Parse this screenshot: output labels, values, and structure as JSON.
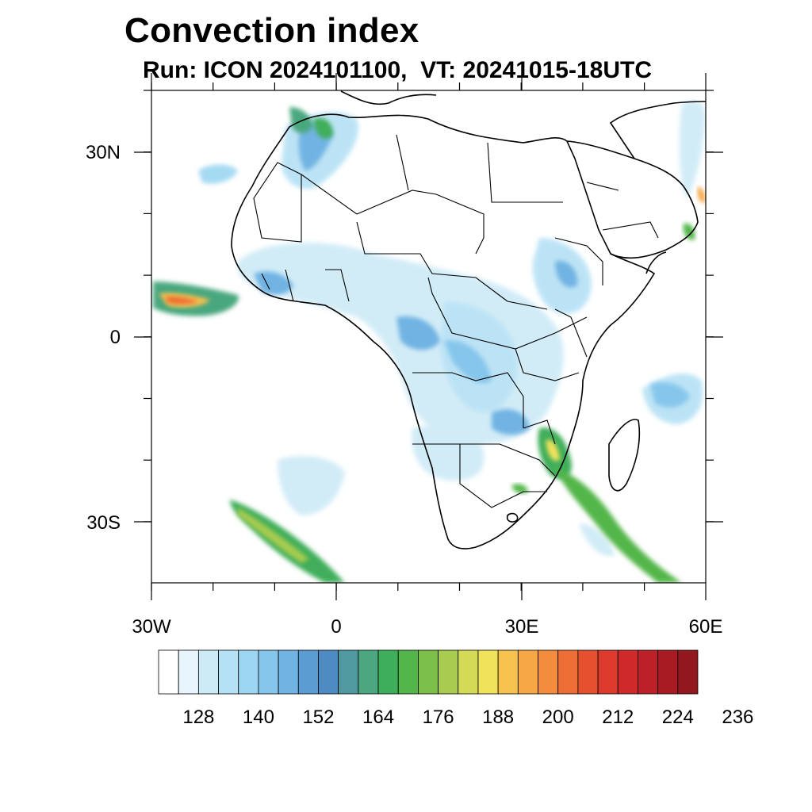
{
  "title": "Convection index",
  "subtitle": "Run: ICON 2024101100,  VT: 20241015-18UTC",
  "axes": {
    "lat_labels": [
      "30N",
      "0",
      "30S"
    ],
    "lon_labels": [
      "30W",
      "0",
      "30E",
      "60E"
    ]
  },
  "map_extent": {
    "lon_min": -30,
    "lon_max": 60,
    "lat_min": -40,
    "lat_max": 40
  },
  "colorbar": {
    "tick_labels": [
      "128",
      "140",
      "152",
      "164",
      "176",
      "188",
      "200",
      "212",
      "224",
      "236"
    ],
    "colors": [
      "#ffffff",
      "#e9f5fc",
      "#cdeaf7",
      "#b5e1f5",
      "#9cd6f2",
      "#86c6ec",
      "#71b3e3",
      "#5b9cd3",
      "#4d8bc2",
      "#4f9aa0",
      "#4aa77f",
      "#3fae5a",
      "#52b64a",
      "#7cbf4a",
      "#a7cc4f",
      "#d3db56",
      "#f0e35b",
      "#f8c24f",
      "#f7a846",
      "#f38c3d",
      "#ed6e35",
      "#e5502f",
      "#dc3a2c",
      "#cf2a2a",
      "#bd2026",
      "#a81b22",
      "#92181e"
    ]
  },
  "chart_data": {
    "type": "heatmap",
    "title": "Convection index",
    "subtitle": "Run: ICON 2024101100,  VT: 20241015-18UTC",
    "x_range": [
      -30,
      60
    ],
    "y_range": [
      -40,
      40
    ],
    "x_ticks": [
      "30W",
      "0",
      "30E",
      "60E"
    ],
    "y_ticks": [
      "30N",
      "0",
      "30S"
    ],
    "colorbar_ticks": [
      128,
      140,
      152,
      164,
      176,
      188,
      200,
      212,
      224,
      236
    ]
  }
}
